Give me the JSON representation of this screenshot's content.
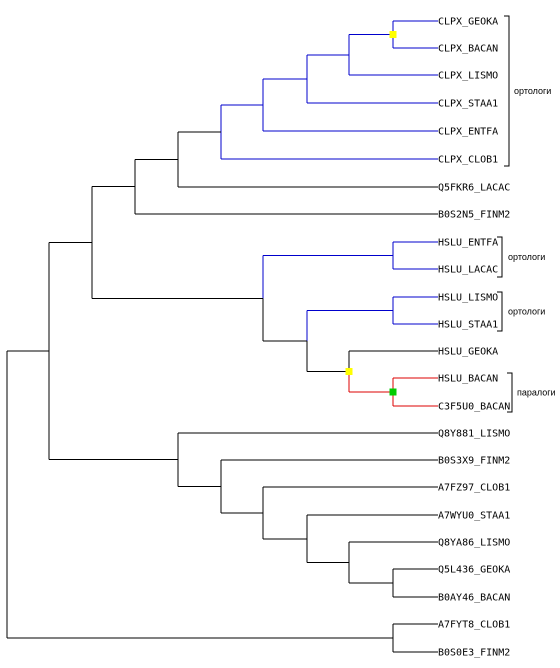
{
  "colors": {
    "default_branch": "#000000",
    "ortholog_branch": "#0000cc",
    "paralog_branch": "#dd0000",
    "duplication_node": "#ffff00",
    "speciation_node": "#00cc00"
  },
  "leaves": [
    {
      "label": "CLPX_GEOKA"
    },
    {
      "label": "CLPX_BACAN"
    },
    {
      "label": "CLPX_LISMO"
    },
    {
      "label": "CLPX_STAA1"
    },
    {
      "label": "CLPX_ENTFA"
    },
    {
      "label": "CLPX_CLOB1"
    },
    {
      "label": "Q5FKR6_LACAC"
    },
    {
      "label": "B0S2N5_FINM2"
    },
    {
      "label": "HSLU_ENTFA"
    },
    {
      "label": "HSLU_LACAC"
    },
    {
      "label": "HSLU_LISMO"
    },
    {
      "label": "HSLU_STAA1"
    },
    {
      "label": "HSLU_GEOKA"
    },
    {
      "label": "HSLU_BACAN"
    },
    {
      "label": "C3F5U0_BACAN"
    },
    {
      "label": "Q8Y881_LISMO"
    },
    {
      "label": "B0S3X9_FINM2"
    },
    {
      "label": "A7FZ97_CLOB1"
    },
    {
      "label": "A7WYU0_STAA1"
    },
    {
      "label": "Q8YA86_LISMO"
    },
    {
      "label": "Q5L436_GEOKA"
    },
    {
      "label": "B0AY46_BACAN"
    },
    {
      "label": "A7FYT8_CLOB1"
    },
    {
      "label": "B0S0E3_FINM2"
    }
  ],
  "groups": [
    {
      "label": "ортологи"
    },
    {
      "label": "ортологи"
    },
    {
      "label": "ортологи"
    },
    {
      "label": "паралоги"
    }
  ]
}
